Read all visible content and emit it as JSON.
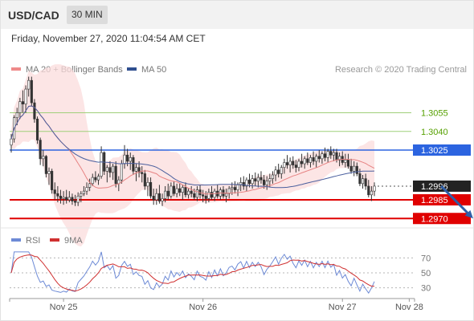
{
  "header": {
    "symbol": "USD/CAD",
    "interval": "30 MIN"
  },
  "timestamp": "Friday, November 27, 2020 11:04:54 AM CET",
  "colors": {
    "up": "#ffffff",
    "down": "#333333",
    "ma20": "#e78383",
    "bollinger_fill": "#fbdcdc",
    "ma50": "#4a5f9e",
    "target_line": "#9fd07a",
    "pivot_line": "#2c64e0",
    "support_line": "#e00000",
    "last_price_label": "#222222",
    "arrow": "#2f5fa8",
    "rsi": "#6d8ad6",
    "rsi_ma": "#d03030",
    "target_text": "#55a000"
  },
  "chart_data": [
    {
      "type": "candlestick",
      "legend": [
        {
          "name": "MA 20 + Bollinger Bands",
          "color": "#ef8a8a"
        },
        {
          "name": "MA 50",
          "color": "#2f4f8f"
        }
      ],
      "copyright": "Research © 2020 Trading Central",
      "x_ticks": [
        {
          "label": "Nov 25",
          "bar": 18
        },
        {
          "label": "Nov 26",
          "bar": 66
        },
        {
          "label": "Nov 27",
          "bar": 114
        },
        {
          "label": "Nov 28",
          "bar": 137
        }
      ],
      "ylim": [
        1.2965,
        1.3085
      ],
      "level_lines": [
        {
          "value": 1.3055,
          "label": "1.3055",
          "kind": "target"
        },
        {
          "value": 1.304,
          "label": "1.3040",
          "kind": "target"
        },
        {
          "value": 1.3025,
          "label": "1.3025",
          "kind": "pivot"
        },
        {
          "value": 1.2996,
          "label": "1.2996",
          "kind": "last"
        },
        {
          "value": 1.2985,
          "label": "1.2985",
          "kind": "support"
        },
        {
          "value": 1.297,
          "label": "1.2970",
          "kind": "support"
        }
      ],
      "arrow": {
        "from": [
          148,
          1.2996
        ],
        "to": [
          159,
          1.297
        ]
      },
      "candles": [
        [
          1.3029,
          1.3038,
          1.3023,
          1.3034
        ],
        [
          1.3034,
          1.3053,
          1.3031,
          1.3051
        ],
        [
          1.3051,
          1.3059,
          1.3045,
          1.3055
        ],
        [
          1.3055,
          1.3067,
          1.305,
          1.3064
        ],
        [
          1.3064,
          1.3073,
          1.3055,
          1.3062
        ],
        [
          1.3062,
          1.3077,
          1.3055,
          1.3074
        ],
        [
          1.3074,
          1.3084,
          1.3068,
          1.3081
        ],
        [
          1.3081,
          1.3084,
          1.306,
          1.3063
        ],
        [
          1.3063,
          1.3066,
          1.3047,
          1.305
        ],
        [
          1.305,
          1.3052,
          1.303,
          1.3033
        ],
        [
          1.3033,
          1.3035,
          1.3013,
          1.3018
        ],
        [
          1.3018,
          1.3025,
          1.3012,
          1.302
        ],
        [
          1.302,
          1.3021,
          1.3003,
          1.3006
        ],
        [
          1.3006,
          1.3011,
          1.2997,
          1.3008
        ],
        [
          1.3008,
          1.301,
          1.299,
          1.2993
        ],
        [
          1.2993,
          1.2999,
          1.2985,
          1.299
        ],
        [
          1.299,
          1.2996,
          1.2983,
          1.2988
        ],
        [
          1.2988,
          1.2993,
          1.2982,
          1.2986
        ],
        [
          1.2986,
          1.2992,
          1.2981,
          1.2987
        ],
        [
          1.2987,
          1.2993,
          1.2982,
          1.2985
        ],
        [
          1.2985,
          1.2992,
          1.2983,
          1.2987
        ],
        [
          1.2987,
          1.299,
          1.2981,
          1.2984
        ],
        [
          1.2984,
          1.2989,
          1.298,
          1.2983
        ],
        [
          1.2983,
          1.2991,
          1.298,
          1.2988
        ],
        [
          1.2988,
          1.2992,
          1.2983,
          1.299
        ],
        [
          1.299,
          1.2996,
          1.2988,
          1.2992
        ],
        [
          1.2992,
          1.2999,
          1.2989,
          1.2995
        ],
        [
          1.2995,
          1.3002,
          1.2992,
          1.2998
        ],
        [
          1.2998,
          1.3006,
          1.2996,
          1.3003
        ],
        [
          1.3003,
          1.3008,
          1.2999,
          1.3001
        ],
        [
          1.3001,
          1.3006,
          1.2997,
          1.3004
        ],
        [
          1.3004,
          1.3028,
          1.3002,
          1.3023
        ],
        [
          1.3023,
          1.3024,
          1.3005,
          1.3008
        ],
        [
          1.3008,
          1.3013,
          1.2999,
          1.3011
        ],
        [
          1.3011,
          1.3016,
          1.3003,
          1.3007
        ],
        [
          1.3007,
          1.3014,
          1.3001,
          1.3012
        ],
        [
          1.3012,
          1.3016,
          1.2995,
          1.2998
        ],
        [
          1.2998,
          1.3004,
          1.2992,
          1.3001
        ],
        [
          1.3001,
          1.3017,
          1.2998,
          1.3014
        ],
        [
          1.3014,
          1.3029,
          1.301,
          1.3021
        ],
        [
          1.3021,
          1.3026,
          1.3012,
          1.3016
        ],
        [
          1.3016,
          1.3023,
          1.3009,
          1.3019
        ],
        [
          1.3019,
          1.3021,
          1.3005,
          1.3008
        ],
        [
          1.3008,
          1.3014,
          1.3,
          1.3011
        ],
        [
          1.3011,
          1.3016,
          1.3003,
          1.3007
        ],
        [
          1.3007,
          1.3012,
          1.2999,
          1.3006
        ],
        [
          1.3006,
          1.3009,
          1.2993,
          1.2996
        ],
        [
          1.2996,
          1.3003,
          1.2988,
          1.2999
        ],
        [
          1.2999,
          1.3003,
          1.2986,
          1.2988
        ],
        [
          1.2988,
          1.2994,
          1.2981,
          1.2985
        ],
        [
          1.2985,
          1.2994,
          1.2981,
          1.299
        ],
        [
          1.299,
          1.2997,
          1.2982,
          1.2984
        ],
        [
          1.2984,
          1.299,
          1.298,
          1.2986
        ],
        [
          1.2986,
          1.2996,
          1.2983,
          1.2992
        ],
        [
          1.2992,
          1.2998,
          1.2985,
          1.2988
        ],
        [
          1.2988,
          1.2999,
          1.2986,
          1.2996
        ],
        [
          1.2996,
          1.3,
          1.2988,
          1.299
        ],
        [
          1.299,
          1.2998,
          1.2987,
          1.2994
        ],
        [
          1.2994,
          1.2998,
          1.2988,
          1.2991
        ],
        [
          1.2991,
          1.2997,
          1.2985,
          1.2995
        ],
        [
          1.2995,
          1.2999,
          1.2987,
          1.2989
        ],
        [
          1.2989,
          1.2994,
          1.2986,
          1.2992
        ],
        [
          1.2992,
          1.2996,
          1.2987,
          1.299
        ],
        [
          1.299,
          1.2994,
          1.2985,
          1.2987
        ],
        [
          1.2987,
          1.2996,
          1.2984,
          1.2993
        ],
        [
          1.2993,
          1.2997,
          1.2986,
          1.2989
        ],
        [
          1.2989,
          1.2993,
          1.2983,
          1.2988
        ],
        [
          1.2988,
          1.2992,
          1.2982,
          1.2986
        ],
        [
          1.2986,
          1.2994,
          1.2983,
          1.2991
        ],
        [
          1.2991,
          1.2996,
          1.2985,
          1.2987
        ],
        [
          1.2987,
          1.2994,
          1.2984,
          1.2992
        ],
        [
          1.2992,
          1.2997,
          1.2986,
          1.2988
        ],
        [
          1.2988,
          1.2995,
          1.2985,
          1.2993
        ],
        [
          1.2993,
          1.2996,
          1.2986,
          1.2988
        ],
        [
          1.2988,
          1.2994,
          1.2983,
          1.299
        ],
        [
          1.299,
          1.2996,
          1.2986,
          1.2994
        ],
        [
          1.2994,
          1.2999,
          1.2989,
          1.2995
        ],
        [
          1.2995,
          1.3,
          1.299,
          1.2993
        ],
        [
          1.2993,
          1.2999,
          1.2988,
          1.2997
        ],
        [
          1.2997,
          1.3003,
          1.2992,
          1.2999
        ],
        [
          1.2999,
          1.3004,
          1.2993,
          1.2996
        ],
        [
          1.2996,
          1.3003,
          1.2992,
          1.3001
        ],
        [
          1.3001,
          1.3006,
          1.2995,
          1.2998
        ],
        [
          1.2998,
          1.3005,
          1.2994,
          1.3002
        ],
        [
          1.3002,
          1.3007,
          1.2996,
          1.3
        ],
        [
          1.3,
          1.3006,
          1.2995,
          1.3003
        ],
        [
          1.3003,
          1.3008,
          1.2998,
          1.3001
        ],
        [
          1.3001,
          1.3005,
          1.2994,
          1.2997
        ],
        [
          1.2997,
          1.3004,
          1.2993,
          1.3
        ],
        [
          1.3,
          1.3006,
          1.2995,
          1.3002
        ],
        [
          1.3002,
          1.3008,
          1.2998,
          1.3005
        ],
        [
          1.3005,
          1.3012,
          1.3,
          1.3009
        ],
        [
          1.3009,
          1.3014,
          1.3003,
          1.3006
        ],
        [
          1.3006,
          1.3013,
          1.3002,
          1.3011
        ],
        [
          1.3011,
          1.3018,
          1.3006,
          1.3015
        ],
        [
          1.3015,
          1.3021,
          1.301,
          1.3013
        ],
        [
          1.3013,
          1.3019,
          1.3007,
          1.3016
        ],
        [
          1.3016,
          1.302,
          1.301,
          1.3013
        ],
        [
          1.3013,
          1.3017,
          1.3007,
          1.3011
        ],
        [
          1.3011,
          1.3018,
          1.3008,
          1.3016
        ],
        [
          1.3016,
          1.3022,
          1.3011,
          1.3014
        ],
        [
          1.3014,
          1.302,
          1.301,
          1.3018
        ],
        [
          1.3018,
          1.3023,
          1.3013,
          1.3015
        ],
        [
          1.3015,
          1.3021,
          1.3011,
          1.3019
        ],
        [
          1.3019,
          1.3024,
          1.3013,
          1.3016
        ],
        [
          1.3016,
          1.3022,
          1.3011,
          1.302
        ],
        [
          1.302,
          1.3025,
          1.3015,
          1.3018
        ],
        [
          1.3018,
          1.3024,
          1.3014,
          1.3022
        ],
        [
          1.3022,
          1.3027,
          1.3016,
          1.3019
        ],
        [
          1.3019,
          1.3026,
          1.3015,
          1.3024
        ],
        [
          1.3024,
          1.3028,
          1.3018,
          1.3021
        ],
        [
          1.3021,
          1.3026,
          1.3016,
          1.3023
        ],
        [
          1.3023,
          1.3026,
          1.3015,
          1.3017
        ],
        [
          1.3017,
          1.3023,
          1.3012,
          1.302
        ],
        [
          1.302,
          1.3024,
          1.3013,
          1.3015
        ],
        [
          1.3015,
          1.3022,
          1.3011,
          1.3017
        ],
        [
          1.3017,
          1.3022,
          1.301,
          1.3012
        ],
        [
          1.3012,
          1.3018,
          1.3006,
          1.3008
        ],
        [
          1.3008,
          1.3016,
          1.3004,
          1.3012
        ],
        [
          1.3012,
          1.3015,
          1.3004,
          1.3006
        ],
        [
          1.3006,
          1.301,
          1.2996,
          1.2998
        ],
        [
          1.2998,
          1.3005,
          1.2994,
          1.3002
        ],
        [
          1.3002,
          1.3006,
          1.2993,
          1.2996
        ],
        [
          1.2996,
          1.3001,
          1.2987,
          1.2989
        ],
        [
          1.2989,
          1.2996,
          1.2984,
          1.2992
        ],
        [
          1.2992,
          1.2999,
          1.2988,
          1.2996
        ]
      ],
      "indicators": {
        "ma20_period": 20,
        "ma50_period": 50,
        "bollinger_stddev": 2
      }
    },
    {
      "type": "line",
      "legend": [
        {
          "name": "RSI",
          "color": "#6d8ad6"
        },
        {
          "name": "9MA",
          "color": "#d03030"
        }
      ],
      "ylim": [
        20,
        80
      ],
      "y_ticks": [
        {
          "value": 70,
          "label": "70"
        },
        {
          "value": 50,
          "label": "50"
        },
        {
          "value": 30,
          "label": "30"
        }
      ]
    }
  ]
}
